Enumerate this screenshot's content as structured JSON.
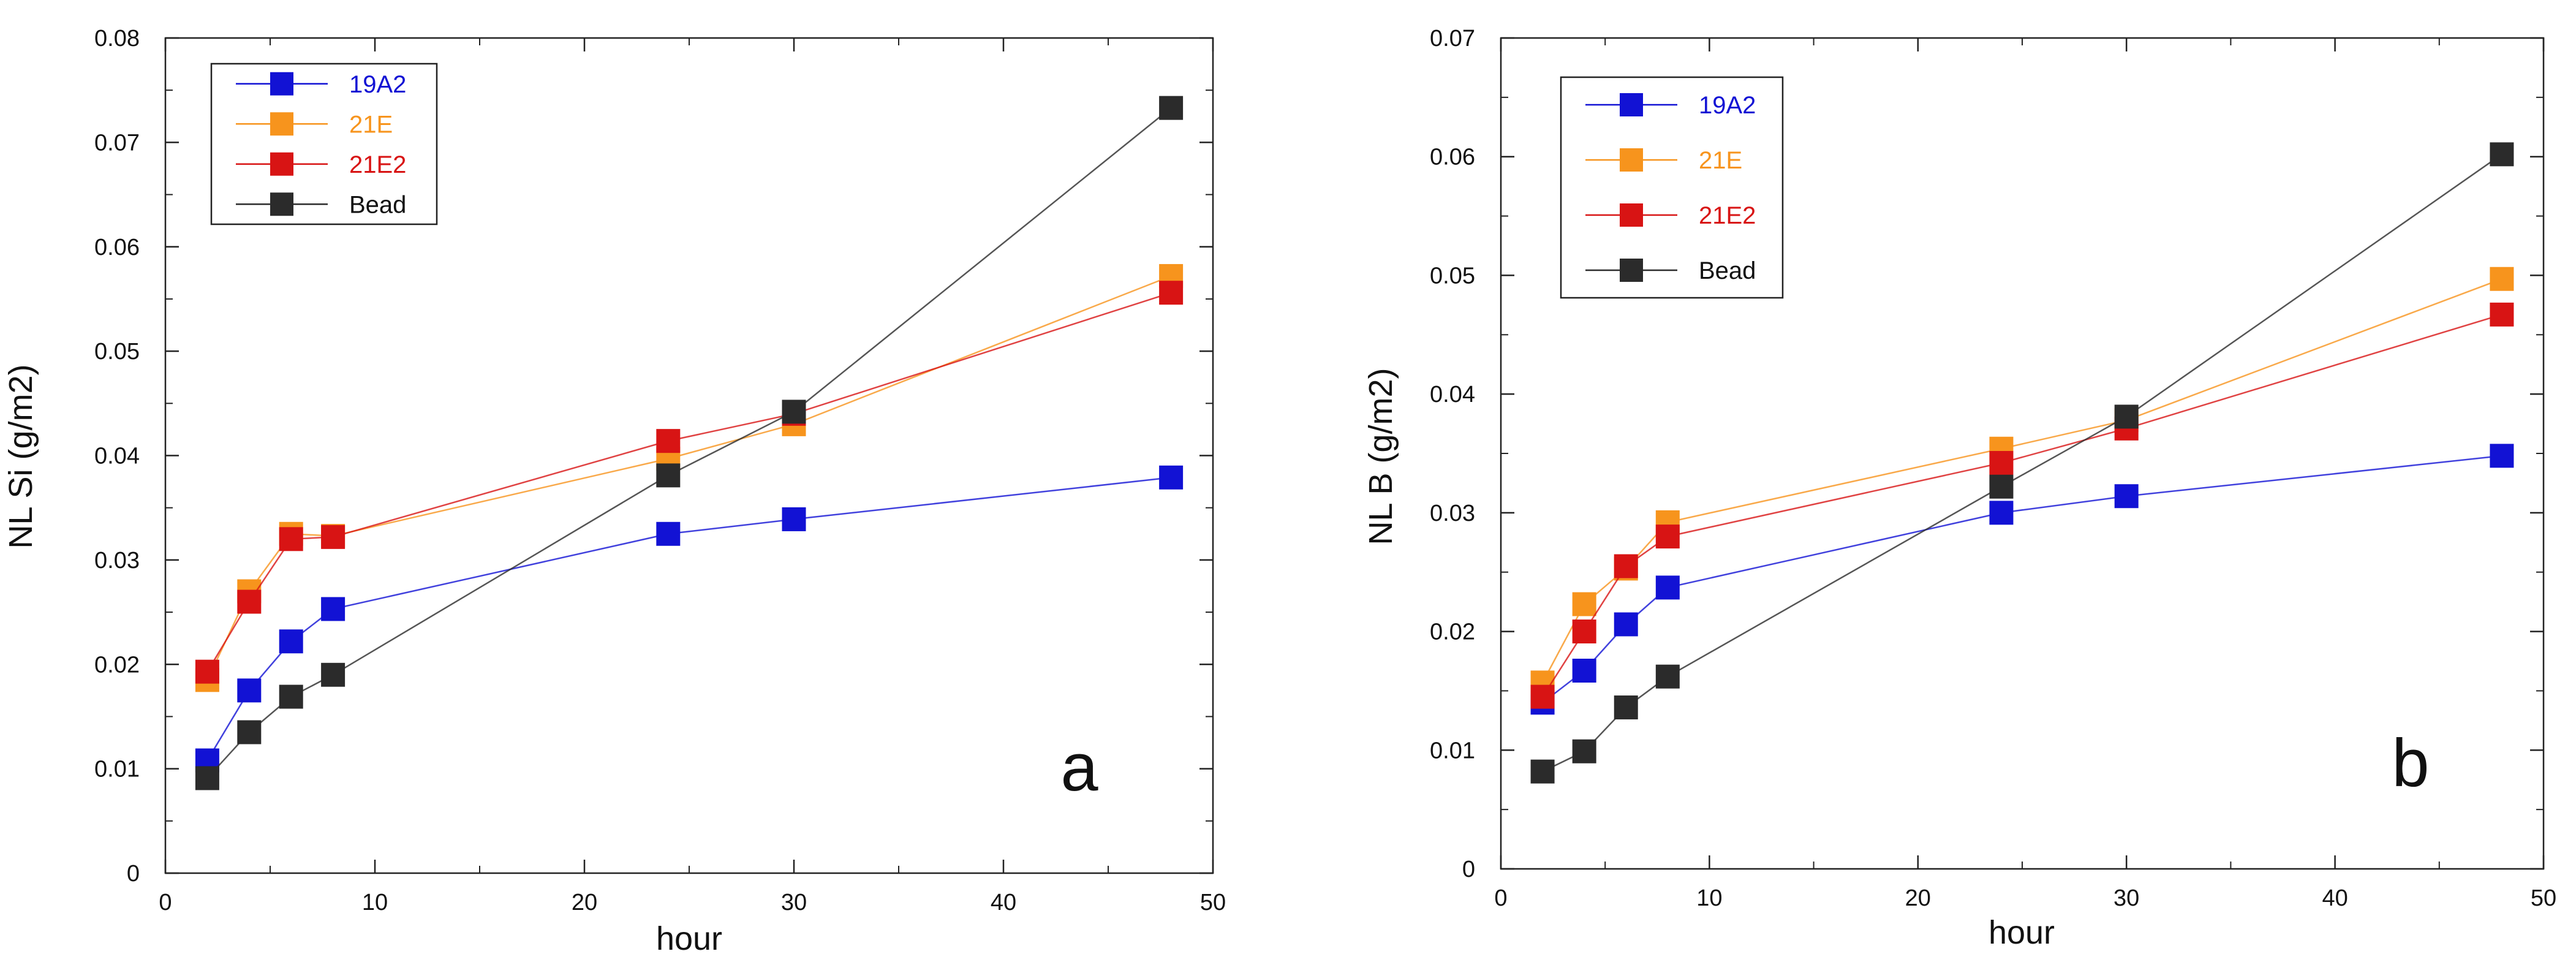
{
  "chart_data": [
    {
      "type": "line",
      "panel_label": "a",
      "xlabel": "hour",
      "ylabel": "NL Si (g/m2)",
      "xlim": [
        0,
        50
      ],
      "ylim": [
        0,
        0.08
      ],
      "xticks": [
        "0",
        "10",
        "20",
        "30",
        "40",
        "50"
      ],
      "yticks": [
        "0",
        "0.01",
        "0.02",
        "0.03",
        "0.04",
        "0.05",
        "0.06",
        "0.07",
        "0.08"
      ],
      "legend_placement": "top-left",
      "x": [
        2,
        4,
        6,
        8,
        24,
        30,
        48
      ],
      "series": [
        {
          "name": "19A2",
          "color": "#1212d4",
          "values": [
            0.0108,
            0.0175,
            0.0222,
            0.0253,
            0.0325,
            0.0339,
            0.0379
          ]
        },
        {
          "name": "21E",
          "color": "#f7941d",
          "values": [
            0.0185,
            0.027,
            0.0325,
            0.0323,
            0.0397,
            0.043,
            0.0572
          ]
        },
        {
          "name": "21E2",
          "color": "#d81414",
          "values": [
            0.0193,
            0.026,
            0.032,
            0.0322,
            0.0414,
            0.044,
            0.0556
          ]
        },
        {
          "name": "Bead",
          "color": "#2b2b2b",
          "values": [
            0.0091,
            0.0135,
            0.0169,
            0.019,
            0.0381,
            0.0442,
            0.0733
          ]
        }
      ]
    },
    {
      "type": "line",
      "panel_label": "b",
      "xlabel": "hour",
      "ylabel": "NL B (g/m2)",
      "xlim": [
        0,
        50
      ],
      "ylim": [
        0,
        0.07
      ],
      "xticks": [
        "0",
        "10",
        "20",
        "30",
        "40",
        "50"
      ],
      "yticks": [
        "0",
        "0.01",
        "0.02",
        "0.03",
        "0.04",
        "0.05",
        "0.06",
        "0.07"
      ],
      "legend_placement": "top-left",
      "x": [
        2,
        4,
        6,
        8,
        24,
        30,
        48
      ],
      "series": [
        {
          "name": "19A2",
          "color": "#1212d4",
          "values": [
            0.014,
            0.0167,
            0.0206,
            0.0237,
            0.03,
            0.0314,
            0.0348
          ]
        },
        {
          "name": "21E",
          "color": "#f7941d",
          "values": [
            0.0157,
            0.0223,
            0.0253,
            0.0292,
            0.0354,
            0.0378,
            0.0497
          ]
        },
        {
          "name": "21E2",
          "color": "#d81414",
          "values": [
            0.0145,
            0.02,
            0.0255,
            0.028,
            0.0342,
            0.0371,
            0.0467
          ]
        },
        {
          "name": "Bead",
          "color": "#2b2b2b",
          "values": [
            0.0082,
            0.0099,
            0.0136,
            0.0162,
            0.0322,
            0.0381,
            0.0602
          ]
        }
      ]
    }
  ]
}
